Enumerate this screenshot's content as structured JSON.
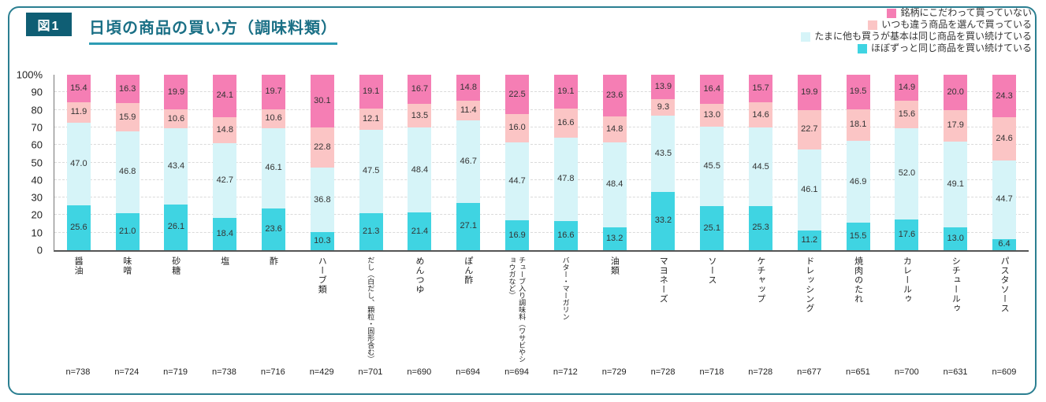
{
  "figure_label": "図1",
  "title": "日頃の商品の買い方（調味料類）",
  "colors": {
    "accent_teal": "#1b7086",
    "badge_bg": "#0f5e74",
    "frame_border": "#2b7f91",
    "underline": "#2d9cb4"
  },
  "legend": [
    {
      "label": "銘柄にこだわって買っていない",
      "color": "#f57eb4"
    },
    {
      "label": "いつも違う商品を選んで買っている",
      "color": "#fbc5c5"
    },
    {
      "label": "たまに他も買うが基本は同じ商品を買い続けている",
      "color": "#d6f4f8"
    },
    {
      "label": "ほぼずっと同じ商品を買い続けている",
      "color": "#3fd4e2"
    }
  ],
  "y_ticks": [
    "100%",
    "90",
    "80",
    "70",
    "60",
    "50",
    "40",
    "30",
    "20",
    "10",
    "0"
  ],
  "chart_data": {
    "type": "bar",
    "stacked": true,
    "percent": true,
    "ylim": [
      0,
      100
    ],
    "grid": "horizontal-dashed",
    "legend_position": "top-right",
    "categories": [
      "醤油",
      "味噌",
      "砂糖",
      "塩",
      "酢",
      "ハーブ類",
      "だし（白だし、顆粒・固形含む）",
      "めんつゆ",
      "ぽん酢",
      "チューブ入り調味料（ワサビやショウガなど）",
      "バター・マーガリン",
      "油類",
      "マヨネーズ",
      "ソース",
      "ケチャップ",
      "ドレッシング",
      "焼肉のたれ",
      "カレールゥ",
      "シチュールゥ",
      "パスタソース"
    ],
    "n_labels": [
      "n=738",
      "n=724",
      "n=719",
      "n=738",
      "n=716",
      "n=429",
      "n=701",
      "n=690",
      "n=694",
      "n=694",
      "n=712",
      "n=729",
      "n=728",
      "n=718",
      "n=728",
      "n=677",
      "n=651",
      "n=700",
      "n=631",
      "n=609"
    ],
    "series": [
      {
        "name": "ほぼずっと同じ商品を買い続けている",
        "color": "#3fd4e2",
        "values": [
          25.6,
          21.0,
          26.1,
          18.4,
          23.6,
          10.3,
          21.3,
          21.4,
          27.1,
          16.9,
          16.6,
          13.2,
          33.2,
          25.1,
          25.3,
          11.2,
          15.5,
          17.6,
          13.0,
          6.4
        ]
      },
      {
        "name": "たまに他も買うが基本は同じ商品を買い続けている",
        "color": "#d6f4f8",
        "values": [
          47.0,
          46.8,
          43.4,
          42.7,
          46.1,
          36.8,
          47.5,
          48.4,
          46.7,
          44.7,
          47.8,
          48.4,
          43.5,
          45.5,
          44.5,
          46.1,
          46.9,
          52.0,
          49.1,
          44.7
        ]
      },
      {
        "name": "いつも違う商品を選んで買っている",
        "color": "#fbc5c5",
        "values": [
          11.9,
          15.9,
          10.6,
          14.8,
          10.6,
          22.8,
          12.1,
          13.5,
          11.4,
          16.0,
          16.6,
          14.8,
          9.3,
          13.0,
          14.6,
          22.7,
          18.1,
          15.6,
          17.9,
          24.6
        ]
      },
      {
        "name": "銘柄にこだわって買っていない",
        "color": "#f57eb4",
        "values": [
          15.4,
          16.3,
          19.9,
          24.1,
          19.7,
          30.1,
          19.1,
          16.7,
          14.8,
          22.5,
          19.1,
          23.6,
          13.9,
          16.4,
          15.7,
          19.9,
          19.5,
          14.9,
          20.0,
          24.3
        ]
      }
    ]
  }
}
